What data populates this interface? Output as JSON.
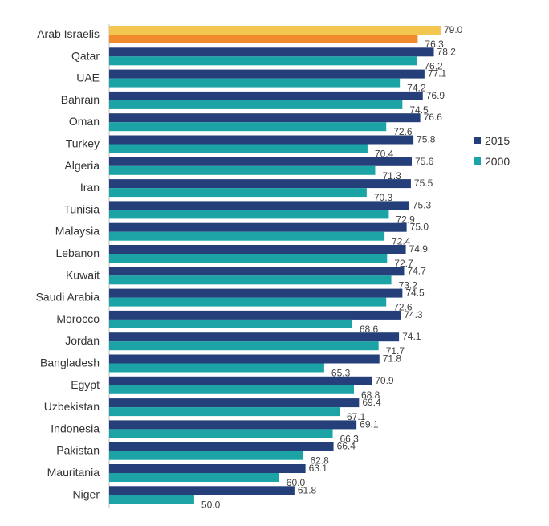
{
  "chart_data": {
    "type": "bar",
    "orientation": "horizontal",
    "categories": [
      "Arab Israelis",
      "Qatar",
      "UAE",
      "Bahrain",
      "Oman",
      "Turkey",
      "Algeria",
      "Iran",
      "Tunisia",
      "Malaysia",
      "Lebanon",
      "Kuwait",
      "Saudi Arabia",
      "Morocco",
      "Jordan",
      "Bangladesh",
      "Egypt",
      "Uzbekistan",
      "Indonesia",
      "Pakistan",
      "Mauritania",
      "Niger"
    ],
    "series": [
      {
        "name": "2015",
        "color": "#243f7a",
        "highlight_color": "#f2c651",
        "values": [
          79.0,
          78.2,
          77.1,
          76.9,
          76.6,
          75.8,
          75.6,
          75.5,
          75.3,
          75.0,
          74.9,
          74.7,
          74.5,
          74.3,
          74.1,
          71.8,
          70.9,
          69.4,
          69.1,
          66.4,
          63.1,
          61.8
        ],
        "labels": [
          "79.0",
          "78.2",
          "77.1",
          "76.9",
          "76.6",
          "75.8",
          "75.6",
          "75.5",
          "75.3",
          "75.0",
          "74.9",
          "74.7",
          "74.5",
          "74.3",
          "74.1",
          "71.8",
          "70.9",
          "69.4",
          "69.1",
          "66.4",
          "63.1",
          "61.8"
        ]
      },
      {
        "name": "2000",
        "color": "#1ba3a6",
        "highlight_color": "#f08a2c",
        "values": [
          76.3,
          76.2,
          74.2,
          74.5,
          72.6,
          70.4,
          71.3,
          70.3,
          72.9,
          72.4,
          72.7,
          73.2,
          72.6,
          68.6,
          71.7,
          65.3,
          68.8,
          67.1,
          66.3,
          62.8,
          60.0,
          50.0
        ],
        "labels": [
          "76.3",
          "76.2",
          "74.2",
          "74.5",
          "72.6",
          "70.4",
          "71.3",
          "70.3",
          "72.9",
          "72.4",
          "72.7",
          "73.2",
          "72.6",
          "68.6",
          "71.7",
          "65.3",
          "68.8",
          "67.1",
          "66.3",
          "62.8",
          "60.0",
          "50.0"
        ]
      }
    ],
    "highlight_category": "Arab Israelis",
    "xlim": [
      40,
      82
    ],
    "legend": {
      "position": "right",
      "items": [
        "2015",
        "2000"
      ]
    },
    "grid": false,
    "title": "",
    "xlabel": "",
    "ylabel": ""
  }
}
